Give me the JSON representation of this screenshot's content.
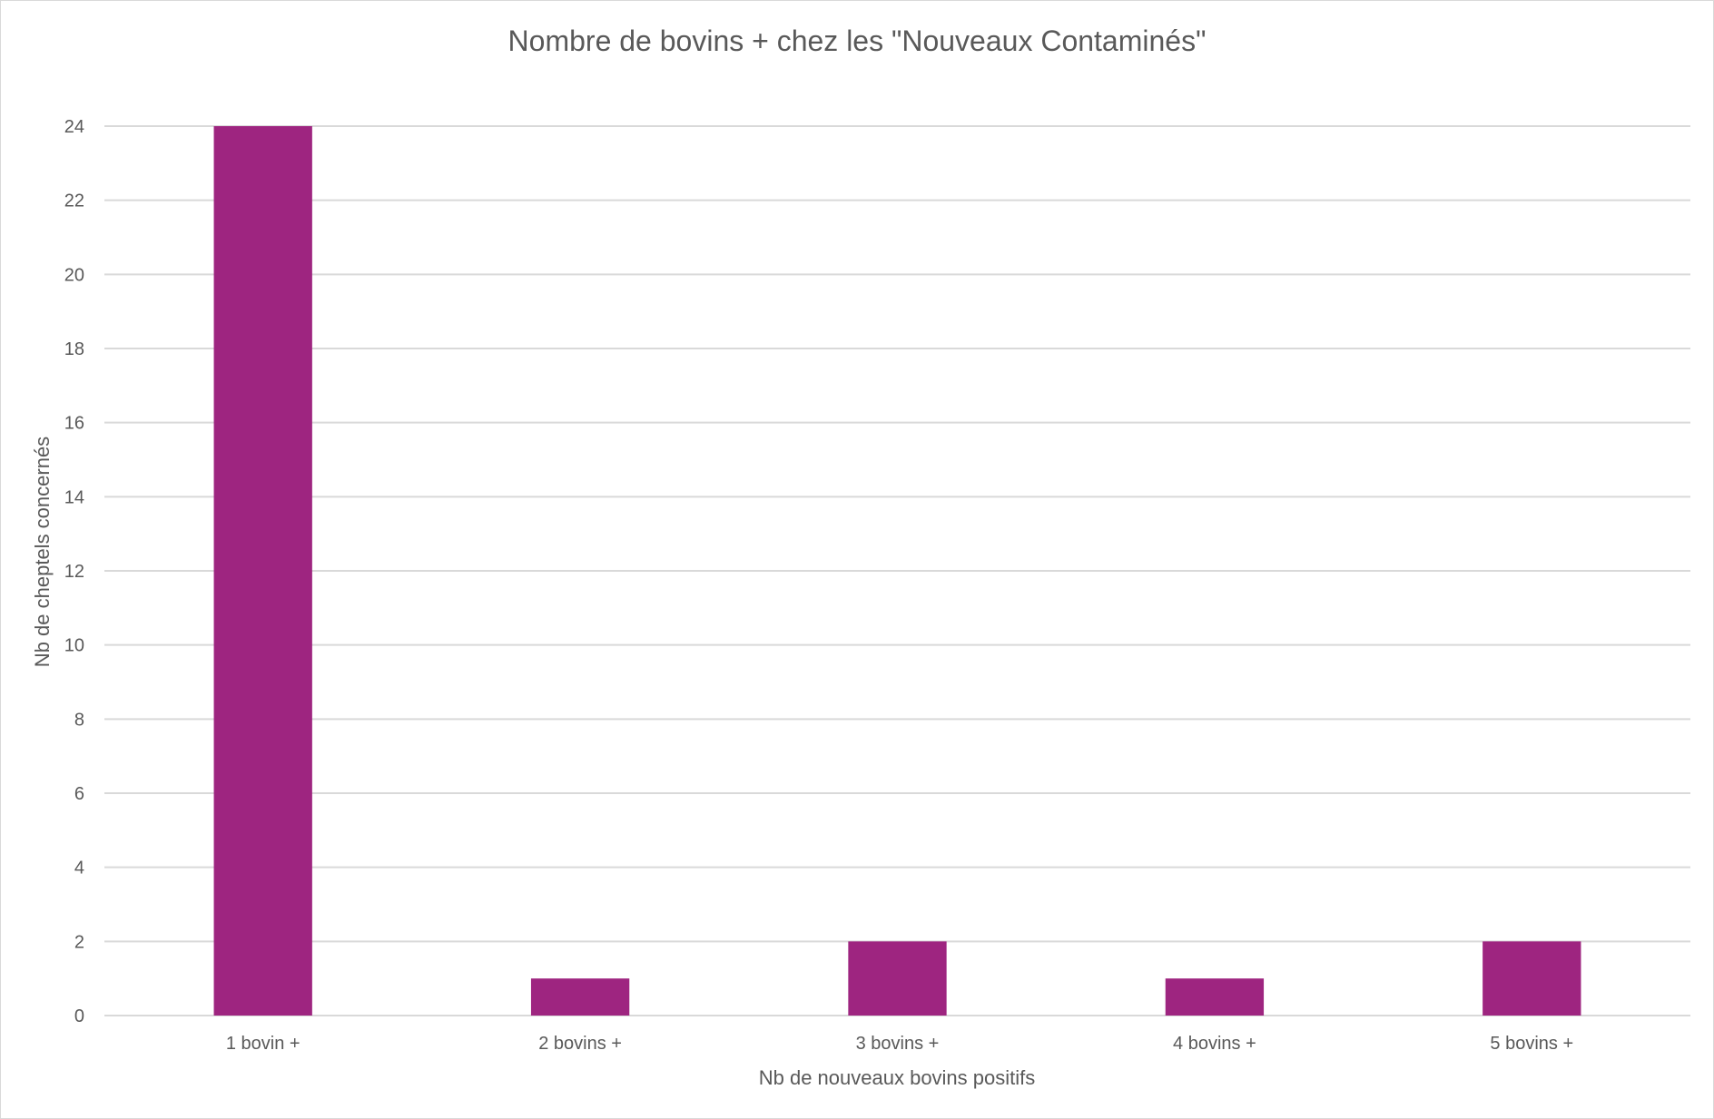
{
  "chart_data": {
    "type": "bar",
    "title": "Nombre de bovins + chez les \"Nouveaux Contaminés\"",
    "xlabel": "Nb de nouveaux bovins positifs",
    "ylabel": "Nb de cheptels concernés",
    "categories": [
      "1 bovin +",
      "2 bovins +",
      "3 bovins +",
      "4 bovins +",
      "5 bovins +"
    ],
    "values": [
      24,
      1,
      2,
      1,
      2
    ],
    "ylim": [
      0,
      24
    ],
    "yticks": [
      "0",
      "2",
      "4",
      "6",
      "8",
      "10",
      "12",
      "14",
      "16",
      "18",
      "20",
      "22",
      "24"
    ],
    "grid": true,
    "legend": "none",
    "bar_color": "#9e2580"
  }
}
